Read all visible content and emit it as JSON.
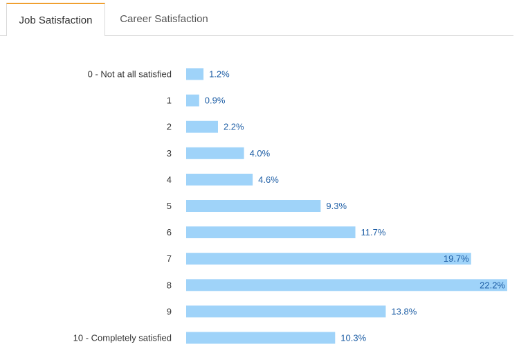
{
  "tabs": [
    {
      "label": "Job Satisfaction",
      "active": true
    },
    {
      "label": "Career Satisfaction",
      "active": false
    }
  ],
  "colors": {
    "bar": "#9fd3f9",
    "value_label": "#1f5fa6",
    "active_tab_accent": "#f0a030"
  },
  "chart_data": {
    "type": "bar",
    "orientation": "horizontal",
    "categories": [
      "0 - Not at all satisfied",
      "1",
      "2",
      "3",
      "4",
      "5",
      "6",
      "7",
      "8",
      "9",
      "10 - Completely satisfied"
    ],
    "values": [
      1.2,
      0.9,
      2.2,
      4.0,
      4.6,
      9.3,
      11.7,
      19.7,
      22.2,
      13.8,
      10.3
    ],
    "value_labels": [
      "1.2%",
      "0.9%",
      "2.2%",
      "4.0%",
      "4.6%",
      "9.3%",
      "11.7%",
      "19.7%",
      "22.2%",
      "13.8%",
      "10.3%"
    ],
    "title": "",
    "xlabel": "",
    "ylabel": "",
    "xlim": [
      0,
      22.2
    ],
    "grid": false,
    "legend": "none"
  }
}
